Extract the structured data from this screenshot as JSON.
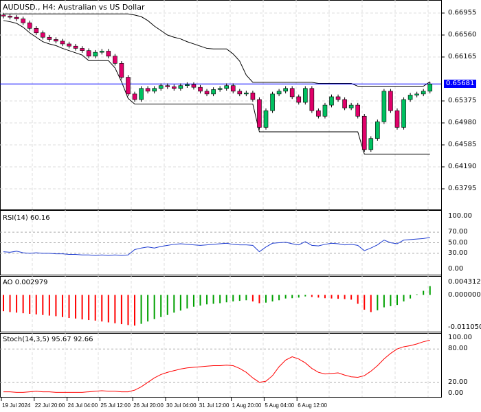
{
  "header": {
    "title": "AUDUSD., H4:  Australian vs US Dollar"
  },
  "current_price": "0.65681",
  "price_axis": [
    "0.66955",
    "0.66560",
    "0.66165",
    "0.65375",
    "0.64980",
    "0.64585",
    "0.64190",
    "0.63795"
  ],
  "time_axis": [
    "19 Jul 2024",
    "22 Jul 20:00",
    "24 Jul 04:00",
    "25 Jul 12:00",
    "26 Jul 20:00",
    "30 Jul 04:00",
    "31 Jul 12:00",
    "1 Aug 20:00",
    "5 Aug 04:00",
    "6 Aug 12:00"
  ],
  "colors": {
    "bull": "#00c060",
    "bear": "#e0006a",
    "line": "#0000ff",
    "rsi": "#1e3cd0",
    "ao_up": "#00a000",
    "ao_down": "#ff0000",
    "stoch": "#ff0000"
  },
  "rsi": {
    "label": "RSI(14) 60.16",
    "axis": [
      "100.00",
      "70.00",
      "50.00",
      "30.00",
      "0.00"
    ]
  },
  "ao": {
    "label": "AO 0.002979",
    "axis": [
      "0.004312",
      "0.000000",
      "-0.011050"
    ]
  },
  "stoch": {
    "label": "Stoch(14,3,5) 95.67 92.66",
    "axis": [
      "100.00",
      "80.00",
      "20.00",
      "0.00"
    ]
  },
  "chart_data": [
    {
      "type": "candlestick",
      "title": "AUDUSD., H4:  Australian vs US Dollar",
      "ylim": [
        0.6355,
        0.671
      ],
      "close": [
        0.669,
        0.6688,
        0.6685,
        0.6678,
        0.6668,
        0.666,
        0.6652,
        0.6648,
        0.6645,
        0.664,
        0.6636,
        0.6632,
        0.6628,
        0.6618,
        0.6625,
        0.6627,
        0.6618,
        0.6605,
        0.658,
        0.655,
        0.654,
        0.656,
        0.6555,
        0.656,
        0.6565,
        0.6563,
        0.656,
        0.6565,
        0.6567,
        0.6562,
        0.6555,
        0.655,
        0.6558,
        0.656,
        0.6565,
        0.6555,
        0.655,
        0.6552,
        0.654,
        0.649,
        0.652,
        0.655,
        0.6555,
        0.656,
        0.6545,
        0.6535,
        0.656,
        0.652,
        0.651,
        0.653,
        0.6545,
        0.654,
        0.6525,
        0.653,
        0.651,
        0.645,
        0.647,
        0.65,
        0.6555,
        0.652,
        0.649,
        0.654,
        0.6548,
        0.655,
        0.6555,
        0.6568
      ]
    },
    {
      "type": "line",
      "name": "RSI(14)",
      "ylim": [
        0,
        100
      ],
      "values": [
        33,
        32,
        34,
        31,
        30,
        31,
        30,
        30,
        29,
        29,
        28,
        28,
        27,
        27,
        26,
        27,
        26,
        27,
        26,
        27,
        37,
        40,
        42,
        40,
        43,
        45,
        47,
        48,
        47,
        46,
        45,
        46,
        47,
        48,
        49,
        47,
        46,
        46,
        45,
        33,
        42,
        49,
        50,
        51,
        48,
        46,
        52,
        45,
        44,
        47,
        49,
        48,
        46,
        47,
        45,
        35,
        40,
        46,
        55,
        50,
        48,
        55,
        56,
        57,
        58,
        60
      ]
    },
    {
      "type": "histogram",
      "name": "AO",
      "ylim": [
        -0.01105,
        0.004312
      ],
      "values": [
        -0.0055,
        -0.0058,
        -0.006,
        -0.0062,
        -0.0064,
        -0.0066,
        -0.0068,
        -0.007,
        -0.0072,
        -0.0075,
        -0.0078,
        -0.008,
        -0.0083,
        -0.0085,
        -0.0087,
        -0.009,
        -0.0093,
        -0.0096,
        -0.0099,
        -0.0102,
        -0.0104,
        -0.0098,
        -0.009,
        -0.0082,
        -0.0075,
        -0.0068,
        -0.006,
        -0.0053,
        -0.0046,
        -0.004,
        -0.0036,
        -0.0032,
        -0.003,
        -0.0028,
        -0.0025,
        -0.0022,
        -0.002,
        -0.0018,
        -0.0022,
        -0.0028,
        -0.0026,
        -0.0022,
        -0.0018,
        -0.0012,
        -0.0011,
        -0.0009,
        -0.0005,
        -0.0007,
        -0.0009,
        -0.0011,
        -0.0012,
        -0.0013,
        -0.0014,
        -0.0016,
        -0.003,
        -0.005,
        -0.0058,
        -0.0052,
        -0.0042,
        -0.0038,
        -0.0034,
        -0.0022,
        -0.0012,
        0.0002,
        0.0014,
        0.00298
      ]
    },
    {
      "type": "line",
      "name": "Stoch(14,3,5)",
      "ylim": [
        0,
        100
      ],
      "values": [
        3,
        3,
        2,
        2,
        3,
        4,
        3,
        3,
        2,
        2,
        2,
        2,
        2,
        3,
        4,
        5,
        4,
        4,
        3,
        3,
        6,
        12,
        20,
        28,
        34,
        38,
        41,
        44,
        46,
        47,
        48,
        49,
        50,
        50,
        51,
        50,
        45,
        38,
        28,
        20,
        22,
        32,
        48,
        60,
        66,
        62,
        55,
        45,
        38,
        35,
        36,
        37,
        33,
        30,
        29,
        32,
        40,
        50,
        62,
        72,
        80,
        84,
        86,
        89,
        93,
        95.67
      ]
    }
  ]
}
